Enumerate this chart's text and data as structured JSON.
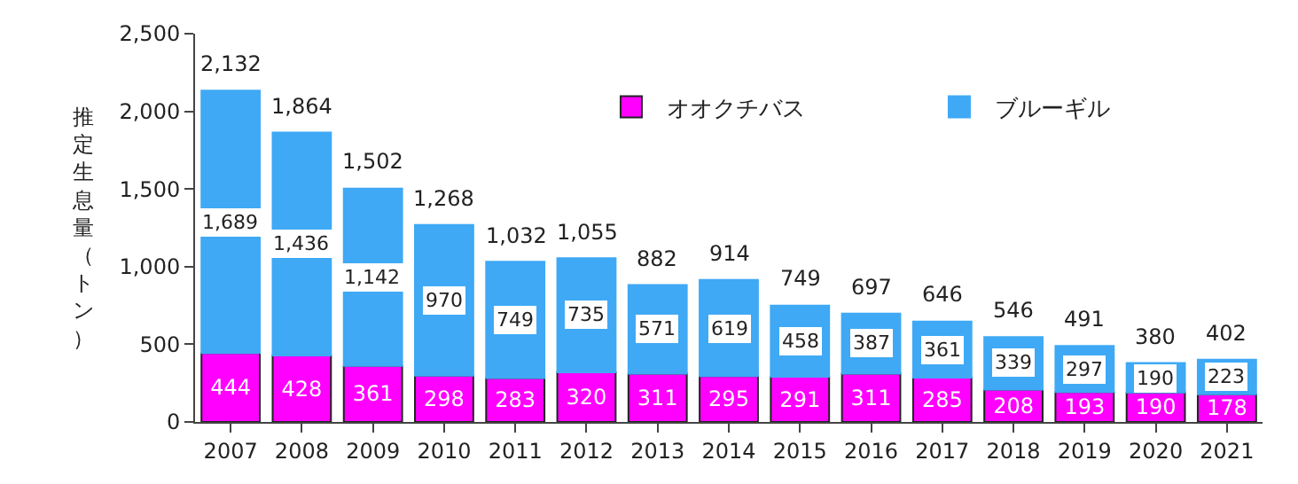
{
  "chart_data": {
    "type": "bar",
    "stacked": true,
    "ylabel": "推定生息量（トン）",
    "categories": [
      "2007",
      "2008",
      "2009",
      "2010",
      "2011",
      "2012",
      "2013",
      "2014",
      "2015",
      "2016",
      "2017",
      "2018",
      "2019",
      "2020",
      "2021"
    ],
    "series": [
      {
        "name": "オオクチバス",
        "color": "#ff00ff",
        "values": [
          444,
          428,
          361,
          298,
          283,
          320,
          311,
          295,
          291,
          311,
          285,
          208,
          193,
          190,
          178
        ],
        "value_labels": [
          "444",
          "428",
          "361",
          "298",
          "283",
          "320",
          "311",
          "295",
          "291",
          "311",
          "285",
          "208",
          "193",
          "190",
          "178"
        ]
      },
      {
        "name": "ブルーギル",
        "color": "#3fa9f5",
        "values": [
          1689,
          1436,
          1142,
          970,
          749,
          735,
          571,
          619,
          458,
          387,
          361,
          339,
          297,
          190,
          223
        ],
        "value_labels": [
          "1,689",
          "1,436",
          "1,142",
          "970",
          "749",
          "735",
          "571",
          "619",
          "458",
          "387",
          "361",
          "339",
          "297",
          "190",
          "223"
        ]
      }
    ],
    "totals": [
      "2,132",
      "1,864",
      "1,502",
      "1,268",
      "1,032",
      "1,055",
      "882",
      "914",
      "749",
      "697",
      "646",
      "546",
      "491",
      "380",
      "402"
    ],
    "ylim": [
      0,
      2500
    ],
    "yticks": [
      {
        "value": 0,
        "label": "0"
      },
      {
        "value": 500,
        "label": "500"
      },
      {
        "value": 1000,
        "label": "1,000"
      },
      {
        "value": 1500,
        "label": "1,500"
      },
      {
        "value": 2000,
        "label": "2,000"
      },
      {
        "value": 2500,
        "label": "2,500"
      }
    ],
    "legend": "top right"
  }
}
